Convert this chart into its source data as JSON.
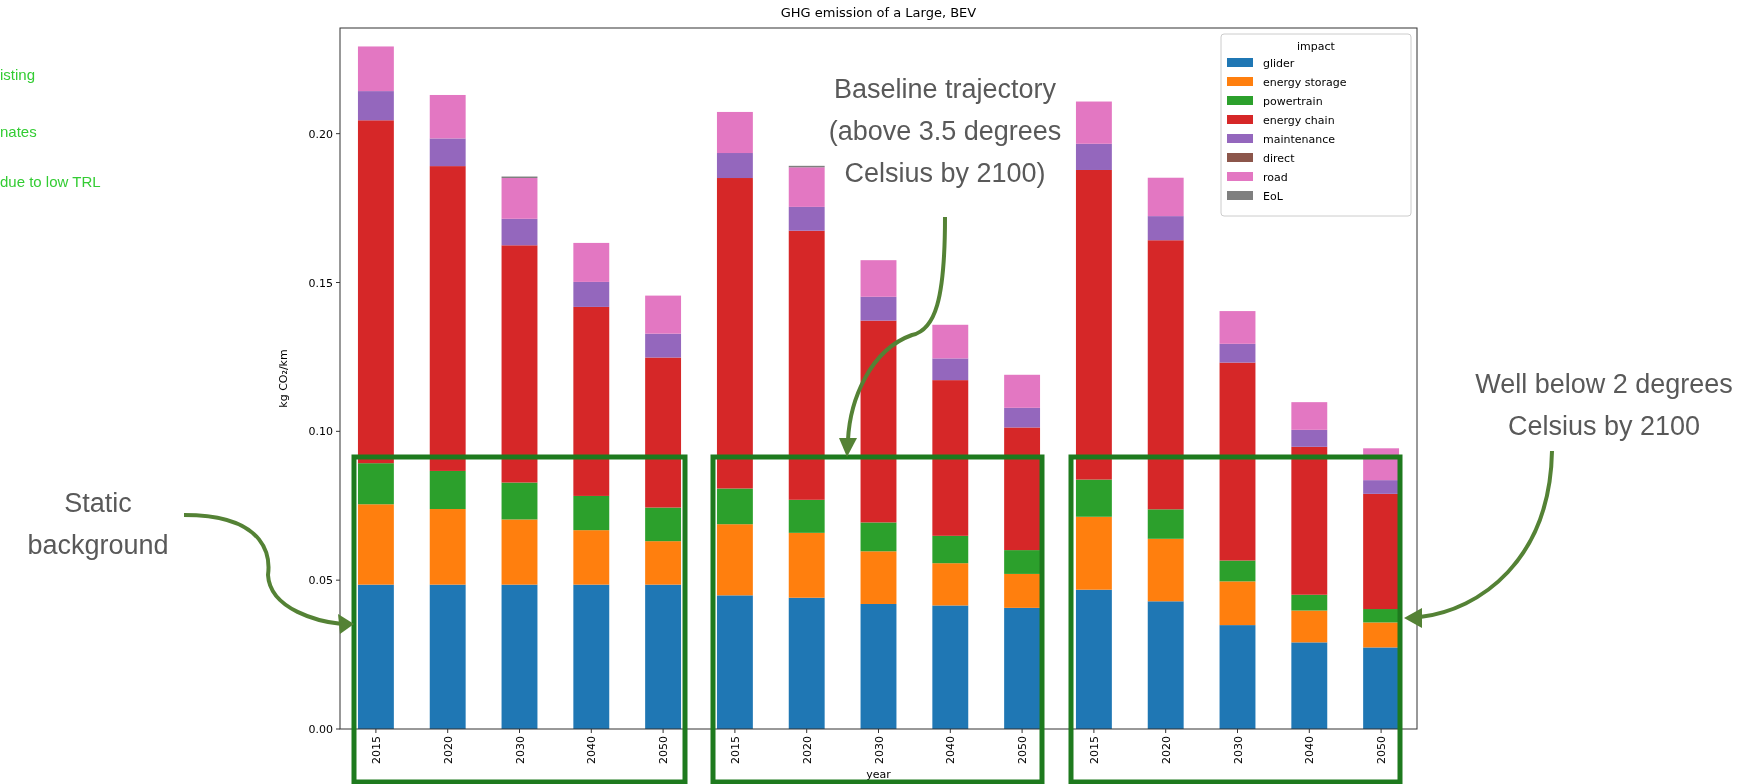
{
  "chart_data": {
    "type": "bar",
    "stacked": true,
    "title": "GHG emission of a Large, BEV",
    "xlabel": "year",
    "ylabel": "kg CO₂/km",
    "legend_title": "impact",
    "legend": "top right",
    "grid": false,
    "categories": [
      "2015",
      "2020",
      "2030",
      "2040",
      "2050",
      "2015",
      "2020",
      "2030",
      "2040",
      "2050",
      "2015",
      "2020",
      "2030",
      "2040",
      "2050"
    ],
    "ylim": [
      0,
      0.2355
    ],
    "yticks": [
      {
        "value": 0,
        "label": "0.00"
      },
      {
        "value": 0.05,
        "label": "0.05"
      },
      {
        "value": 0.1,
        "label": "0.10"
      },
      {
        "value": 0.15,
        "label": "0.15"
      },
      {
        "value": 0.2,
        "label": "0.20"
      }
    ],
    "series": [
      {
        "name": "glider",
        "color": "#1f77b4",
        "values": [
          0.0485,
          0.0485,
          0.0485,
          0.0485,
          0.0485,
          0.0449,
          0.0441,
          0.042,
          0.0415,
          0.0407,
          0.0468,
          0.0429,
          0.0349,
          0.0291,
          0.0274
        ]
      },
      {
        "name": "energy storage",
        "color": "#ff7f0e",
        "values": [
          0.027,
          0.0254,
          0.0219,
          0.0183,
          0.0146,
          0.0239,
          0.0218,
          0.0177,
          0.0142,
          0.0114,
          0.0245,
          0.021,
          0.0147,
          0.0107,
          0.0084
        ]
      },
      {
        "name": "powertrain",
        "color": "#2ca02c",
        "values": [
          0.0138,
          0.0128,
          0.0124,
          0.0115,
          0.0113,
          0.012,
          0.0111,
          0.0097,
          0.0092,
          0.008,
          0.0125,
          0.0099,
          0.007,
          0.0053,
          0.0045
        ]
      },
      {
        "name": "energy chain",
        "color": "#d62728",
        "values": [
          0.1152,
          0.1024,
          0.0797,
          0.0635,
          0.0504,
          0.1043,
          0.0904,
          0.0678,
          0.0523,
          0.0412,
          0.104,
          0.0904,
          0.0665,
          0.0497,
          0.0387
        ]
      },
      {
        "name": "maintenance",
        "color": "#9467bd",
        "values": [
          0.0098,
          0.0093,
          0.0089,
          0.0084,
          0.008,
          0.0084,
          0.008,
          0.008,
          0.0073,
          0.0066,
          0.0088,
          0.0081,
          0.0063,
          0.0057,
          0.0046
        ]
      },
      {
        "name": "direct",
        "color": "#8c564b",
        "values": [
          0,
          0,
          0,
          0,
          0,
          0,
          0,
          0,
          0,
          0,
          0,
          0,
          0,
          0,
          0
        ]
      },
      {
        "name": "road",
        "color": "#e377c2",
        "values": [
          0.015,
          0.0146,
          0.0137,
          0.0131,
          0.0128,
          0.0138,
          0.0133,
          0.0123,
          0.0113,
          0.0111,
          0.0142,
          0.0129,
          0.011,
          0.0093,
          0.0107
        ]
      },
      {
        "name": "EoL",
        "color": "#7f7f7f",
        "values": [
          0,
          0,
          0.0005,
          0,
          0,
          0,
          0.0005,
          0,
          0,
          0,
          0,
          0,
          0,
          0,
          0
        ]
      }
    ],
    "annotations": [
      "isting",
      "nates",
      "due to low TRL",
      "Static background",
      "Baseline trajectory (above 3.5 degrees Celsius by 2100)",
      "Well below 2 degrees Celsius by 2100"
    ]
  }
}
